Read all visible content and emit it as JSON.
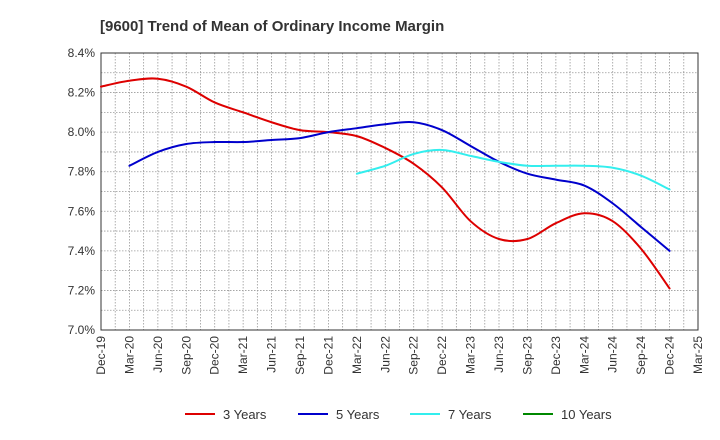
{
  "chart_data": {
    "type": "line",
    "title": "[9600]  Trend of Mean of Ordinary Income Margin",
    "xlabel": "",
    "ylabel": "",
    "categories": [
      "Dec-19",
      "Mar-20",
      "Jun-20",
      "Sep-20",
      "Dec-20",
      "Mar-21",
      "Jun-21",
      "Sep-21",
      "Dec-21",
      "Mar-22",
      "Jun-22",
      "Sep-22",
      "Dec-22",
      "Mar-23",
      "Jun-23",
      "Sep-23",
      "Dec-23",
      "Mar-24",
      "Jun-24",
      "Sep-24",
      "Dec-24",
      "Mar-25"
    ],
    "y_ticks": [
      "8.4%",
      "8.2%",
      "8.0%",
      "7.8%",
      "7.6%",
      "7.4%",
      "7.2%",
      "7.0%"
    ],
    "ylim": [
      7.0,
      8.4
    ],
    "grid": true,
    "legend_position": "bottom",
    "series": [
      {
        "name": "3 Years",
        "color": "#dd0000",
        "values": [
          8.23,
          8.26,
          8.27,
          8.23,
          8.15,
          8.1,
          8.05,
          8.01,
          8.0,
          7.98,
          7.92,
          7.84,
          7.72,
          7.55,
          7.46,
          7.46,
          7.54,
          7.59,
          7.55,
          7.41,
          7.21,
          null
        ]
      },
      {
        "name": "5 Years",
        "color": "#0000cc",
        "values": [
          null,
          7.83,
          7.9,
          7.94,
          7.95,
          7.95,
          7.96,
          7.97,
          8.0,
          8.02,
          8.04,
          8.05,
          8.01,
          7.93,
          7.85,
          7.79,
          7.76,
          7.73,
          7.64,
          7.52,
          7.4,
          null
        ]
      },
      {
        "name": "7 Years",
        "color": "#33eeee",
        "values": [
          null,
          null,
          null,
          null,
          null,
          null,
          null,
          null,
          null,
          7.79,
          7.83,
          7.89,
          7.91,
          7.88,
          7.85,
          7.83,
          7.83,
          7.83,
          7.82,
          7.78,
          7.71,
          null
        ]
      },
      {
        "name": "10 Years",
        "color": "#008800",
        "values": [
          null,
          null,
          null,
          null,
          null,
          null,
          null,
          null,
          null,
          null,
          null,
          null,
          null,
          null,
          null,
          null,
          null,
          null,
          null,
          null,
          null,
          null
        ]
      }
    ]
  }
}
